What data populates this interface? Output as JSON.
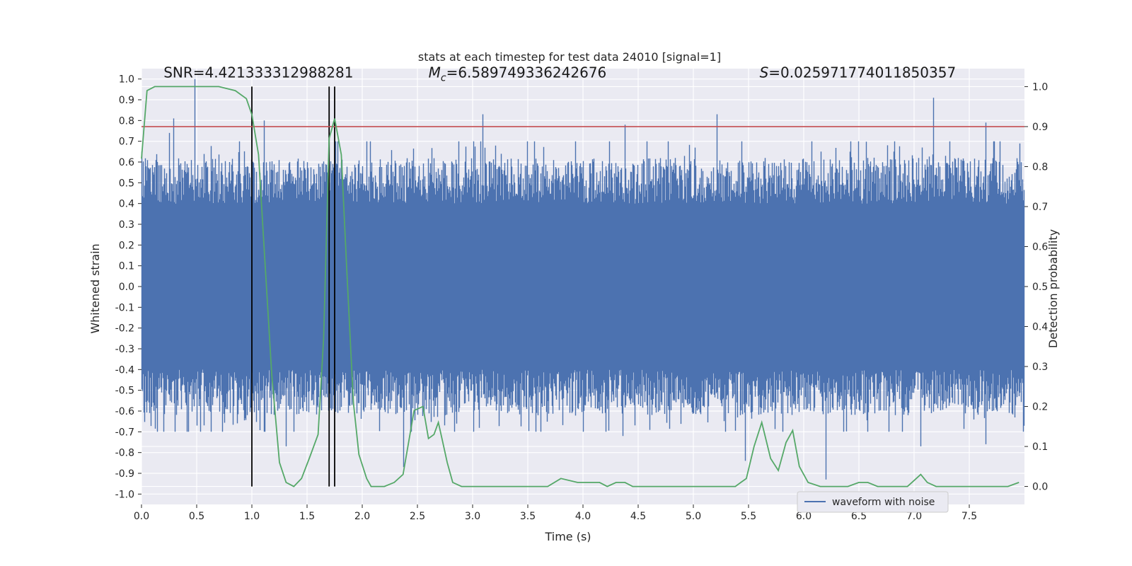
{
  "chart_data": {
    "type": "line",
    "title": "stats at each timestep for test data 24010 [signal=1]",
    "xlabel": "Time (s)",
    "ylabel_left": "Whitened strain",
    "ylabel_right": "Detection probability",
    "xlim": [
      0.0,
      8.0
    ],
    "ylim_left": [
      -1.05,
      1.05
    ],
    "ylim_right": [
      -0.045,
      1.045
    ],
    "xticks": [
      "0.0",
      "0.5",
      "1.0",
      "1.5",
      "2.0",
      "2.5",
      "3.0",
      "3.5",
      "4.0",
      "4.5",
      "5.0",
      "5.5",
      "6.0",
      "6.5",
      "7.0",
      "7.5"
    ],
    "yticks_left": [
      "-1.0",
      "-0.9",
      "-0.8",
      "-0.7",
      "-0.6",
      "-0.5",
      "-0.4",
      "-0.3",
      "-0.2",
      "-0.1",
      "0.0",
      "0.1",
      "0.2",
      "0.3",
      "0.4",
      "0.5",
      "0.6",
      "0.7",
      "0.8",
      "0.9",
      "1.0"
    ],
    "yticks_right": [
      "0.0",
      "0.1",
      "0.2",
      "0.3",
      "0.4",
      "0.5",
      "0.6",
      "0.7",
      "0.8",
      "0.9",
      "1.0"
    ],
    "grid": true,
    "legend_position": "lower-right",
    "colors": {
      "background": "#eaeaf2",
      "grid": "#ffffff",
      "waveform": "#4c72b0",
      "probability": "#55a868",
      "threshold": "#c44e52",
      "markers": "#000000"
    },
    "annotations": [
      {
        "prefix": "SNR=",
        "value": "4.421333312988281",
        "x": 0.2
      },
      {
        "prefix": "M",
        "subscript": "c",
        "suffix": "=",
        "value": "6.589749336242676",
        "x": 2.6
      },
      {
        "prefix": "S",
        "suffix": "=",
        "value": "0.025971774011850357",
        "x": 5.6
      }
    ],
    "threshold_probability": 0.9,
    "vertical_markers": [
      1.0,
      1.7,
      1.75
    ],
    "series": [
      {
        "name": "waveform with noise",
        "axis": "left",
        "kind": "noise",
        "typical_envelope": 0.35,
        "peaks": [
          {
            "t": 0.48,
            "v": 1.0
          },
          {
            "t": 0.29,
            "v": 0.81
          },
          {
            "t": 0.25,
            "v": 0.74
          },
          {
            "t": 1.11,
            "v": 0.8
          },
          {
            "t": 3.09,
            "v": 0.83
          },
          {
            "t": 4.38,
            "v": 0.78
          },
          {
            "t": 5.21,
            "v": 0.83
          },
          {
            "t": 7.17,
            "v": 0.91
          },
          {
            "t": 7.65,
            "v": 0.79
          },
          {
            "t": 2.37,
            "v": -0.87
          },
          {
            "t": 1.31,
            "v": -0.77
          },
          {
            "t": 4.36,
            "v": -0.72
          },
          {
            "t": 5.47,
            "v": -0.84
          },
          {
            "t": 6.2,
            "v": -0.93
          },
          {
            "t": 7.65,
            "v": -0.76
          },
          {
            "t": 7.06,
            "v": -0.77
          },
          {
            "t": 0.5,
            "v": -0.67
          },
          {
            "t": 6.94,
            "v": -0.62
          }
        ]
      },
      {
        "name": "",
        "axis": "right",
        "kind": "line",
        "x": [
          0.0,
          0.05,
          0.12,
          0.2,
          0.3,
          0.5,
          0.7,
          0.85,
          0.95,
          1.0,
          1.06,
          1.11,
          1.18,
          1.25,
          1.31,
          1.38,
          1.45,
          1.52,
          1.6,
          1.65,
          1.7,
          1.75,
          1.81,
          1.86,
          1.92,
          1.97,
          2.04,
          2.08,
          2.13,
          2.2,
          2.29,
          2.37,
          2.47,
          2.55,
          2.6,
          2.65,
          2.69,
          2.73,
          2.77,
          2.82,
          2.9,
          3.0,
          3.2,
          3.4,
          3.55,
          3.68,
          3.8,
          3.95,
          4.05,
          4.15,
          4.22,
          4.3,
          4.38,
          4.45,
          4.55,
          4.7,
          5.0,
          5.2,
          5.3,
          5.38,
          5.43,
          5.48,
          5.55,
          5.62,
          5.7,
          5.77,
          5.84,
          5.9,
          5.96,
          6.04,
          6.15,
          6.3,
          6.4,
          6.5,
          6.58,
          6.67,
          6.76,
          6.84,
          6.94,
          6.98,
          7.06,
          7.12,
          7.2,
          7.3,
          7.4,
          7.55,
          7.7,
          7.85,
          7.95
        ],
        "values": [
          0.82,
          0.99,
          1.0,
          1.0,
          1.0,
          1.0,
          1.0,
          0.99,
          0.97,
          0.93,
          0.83,
          0.6,
          0.28,
          0.06,
          0.01,
          0.0,
          0.02,
          0.07,
          0.13,
          0.37,
          0.87,
          0.92,
          0.83,
          0.54,
          0.21,
          0.08,
          0.02,
          0.0,
          0.0,
          0.0,
          0.01,
          0.03,
          0.19,
          0.2,
          0.12,
          0.13,
          0.16,
          0.11,
          0.06,
          0.01,
          0.0,
          0.0,
          0.0,
          0.0,
          0.0,
          0.0,
          0.02,
          0.01,
          0.01,
          0.01,
          0.0,
          0.01,
          0.01,
          0.0,
          0.0,
          0.0,
          0.0,
          0.0,
          0.0,
          0.0,
          0.01,
          0.02,
          0.1,
          0.16,
          0.07,
          0.04,
          0.11,
          0.14,
          0.05,
          0.01,
          0.0,
          0.0,
          0.0,
          0.01,
          0.01,
          0.0,
          0.0,
          0.0,
          0.0,
          0.01,
          0.03,
          0.01,
          0.0,
          0.0,
          0.0,
          0.0,
          0.0,
          0.0,
          0.01
        ]
      }
    ]
  }
}
